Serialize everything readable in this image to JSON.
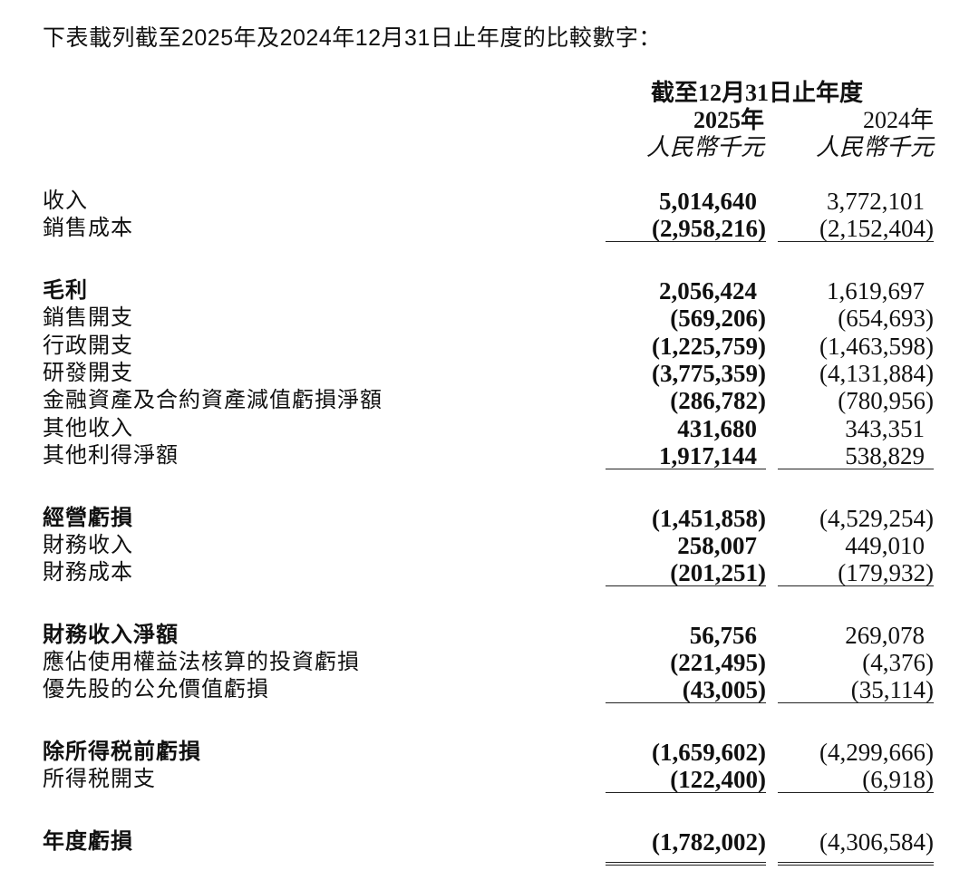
{
  "intro": "下表載列截至2025年及2024年12月31日止年度的比較數字：",
  "header": {
    "period": "截至12月31日止年度",
    "year_2025": "2025年",
    "year_2024": "2024年",
    "unit_2025": "人民幣千元",
    "unit_2024": "人民幣千元"
  },
  "groups": [
    {
      "rows": [
        {
          "label": "收入",
          "bold": false,
          "v2025": "5,014,640",
          "v2024": "3,772,101"
        },
        {
          "label": "銷售成本",
          "bold": false,
          "v2025": "(2,958,216)",
          "v2024": "(2,152,404)"
        }
      ]
    },
    {
      "rows": [
        {
          "label": "毛利",
          "bold": true,
          "v2025": "2,056,424",
          "v2024": "1,619,697"
        },
        {
          "label": "銷售開支",
          "bold": false,
          "v2025": "(569,206)",
          "v2024": "(654,693)"
        },
        {
          "label": "行政開支",
          "bold": false,
          "v2025": "(1,225,759)",
          "v2024": "(1,463,598)"
        },
        {
          "label": "研發開支",
          "bold": false,
          "v2025": "(3,775,359)",
          "v2024": "(4,131,884)"
        },
        {
          "label": "金融資產及合約資產減值虧損淨額",
          "bold": false,
          "v2025": "(286,782)",
          "v2024": "(780,956)"
        },
        {
          "label": "其他收入",
          "bold": false,
          "v2025": "431,680",
          "v2024": "343,351"
        },
        {
          "label": "其他利得淨額",
          "bold": false,
          "v2025": "1,917,144",
          "v2024": "538,829"
        }
      ]
    },
    {
      "rows": [
        {
          "label": "經營虧損",
          "bold": true,
          "v2025": "(1,451,858)",
          "v2024": "(4,529,254)"
        },
        {
          "label": "財務收入",
          "bold": false,
          "v2025": "258,007",
          "v2024": "449,010"
        },
        {
          "label": "財務成本",
          "bold": false,
          "v2025": "(201,251)",
          "v2024": "(179,932)"
        }
      ]
    },
    {
      "rows": [
        {
          "label": "財務收入淨額",
          "bold": true,
          "v2025": "56,756",
          "v2024": "269,078"
        },
        {
          "label": "應佔使用權益法核算的投資虧損",
          "bold": false,
          "v2025": "(221,495)",
          "v2024": "(4,376)"
        },
        {
          "label": "優先股的公允價值虧損",
          "bold": false,
          "v2025": "(43,005)",
          "v2024": "(35,114)"
        }
      ]
    },
    {
      "rows": [
        {
          "label": "除所得税前虧損",
          "bold": true,
          "v2025": "(1,659,602)",
          "v2024": "(4,299,666)"
        },
        {
          "label": "所得税開支",
          "bold": false,
          "v2025": "(122,400)",
          "v2024": "(6,918)"
        }
      ]
    },
    {
      "rows": [
        {
          "label": "年度虧損",
          "bold": true,
          "v2025": "(1,782,002)",
          "v2024": "(4,306,584)"
        }
      ]
    }
  ]
}
